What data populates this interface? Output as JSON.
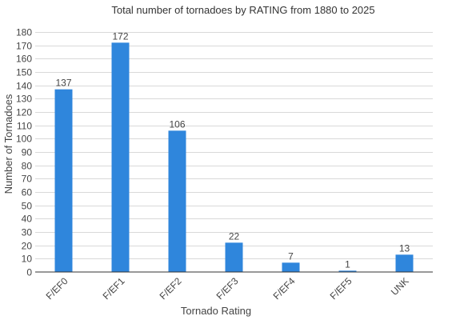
{
  "chart_data": {
    "type": "bar",
    "title": "Total number of tornadoes by RATING from 1880 to 2025",
    "xlabel": "Tornado Rating",
    "ylabel": "Number of Tornadoes",
    "categories": [
      "F/EF0",
      "F/EF1",
      "F/EF2",
      "F/EF3",
      "F/EF4",
      "F/EF5",
      "UNK"
    ],
    "values": [
      137,
      172,
      106,
      22,
      7,
      1,
      13
    ],
    "data_labels": [
      "137",
      "172",
      "106",
      "22",
      "7",
      "1",
      "13"
    ],
    "ylim": [
      0,
      180
    ],
    "yticks": [
      0,
      10,
      20,
      30,
      40,
      50,
      60,
      70,
      80,
      90,
      100,
      110,
      120,
      130,
      140,
      150,
      160,
      170,
      180
    ],
    "ytick_labels": [
      "0",
      "10",
      "20",
      "30",
      "40",
      "50",
      "60",
      "70",
      "80",
      "90",
      "100",
      "110",
      "120",
      "130",
      "140",
      "150",
      "160",
      "170",
      "180"
    ],
    "grid": true,
    "bar_color": "#2f86dc",
    "grid_color": "#d9d9d9"
  }
}
